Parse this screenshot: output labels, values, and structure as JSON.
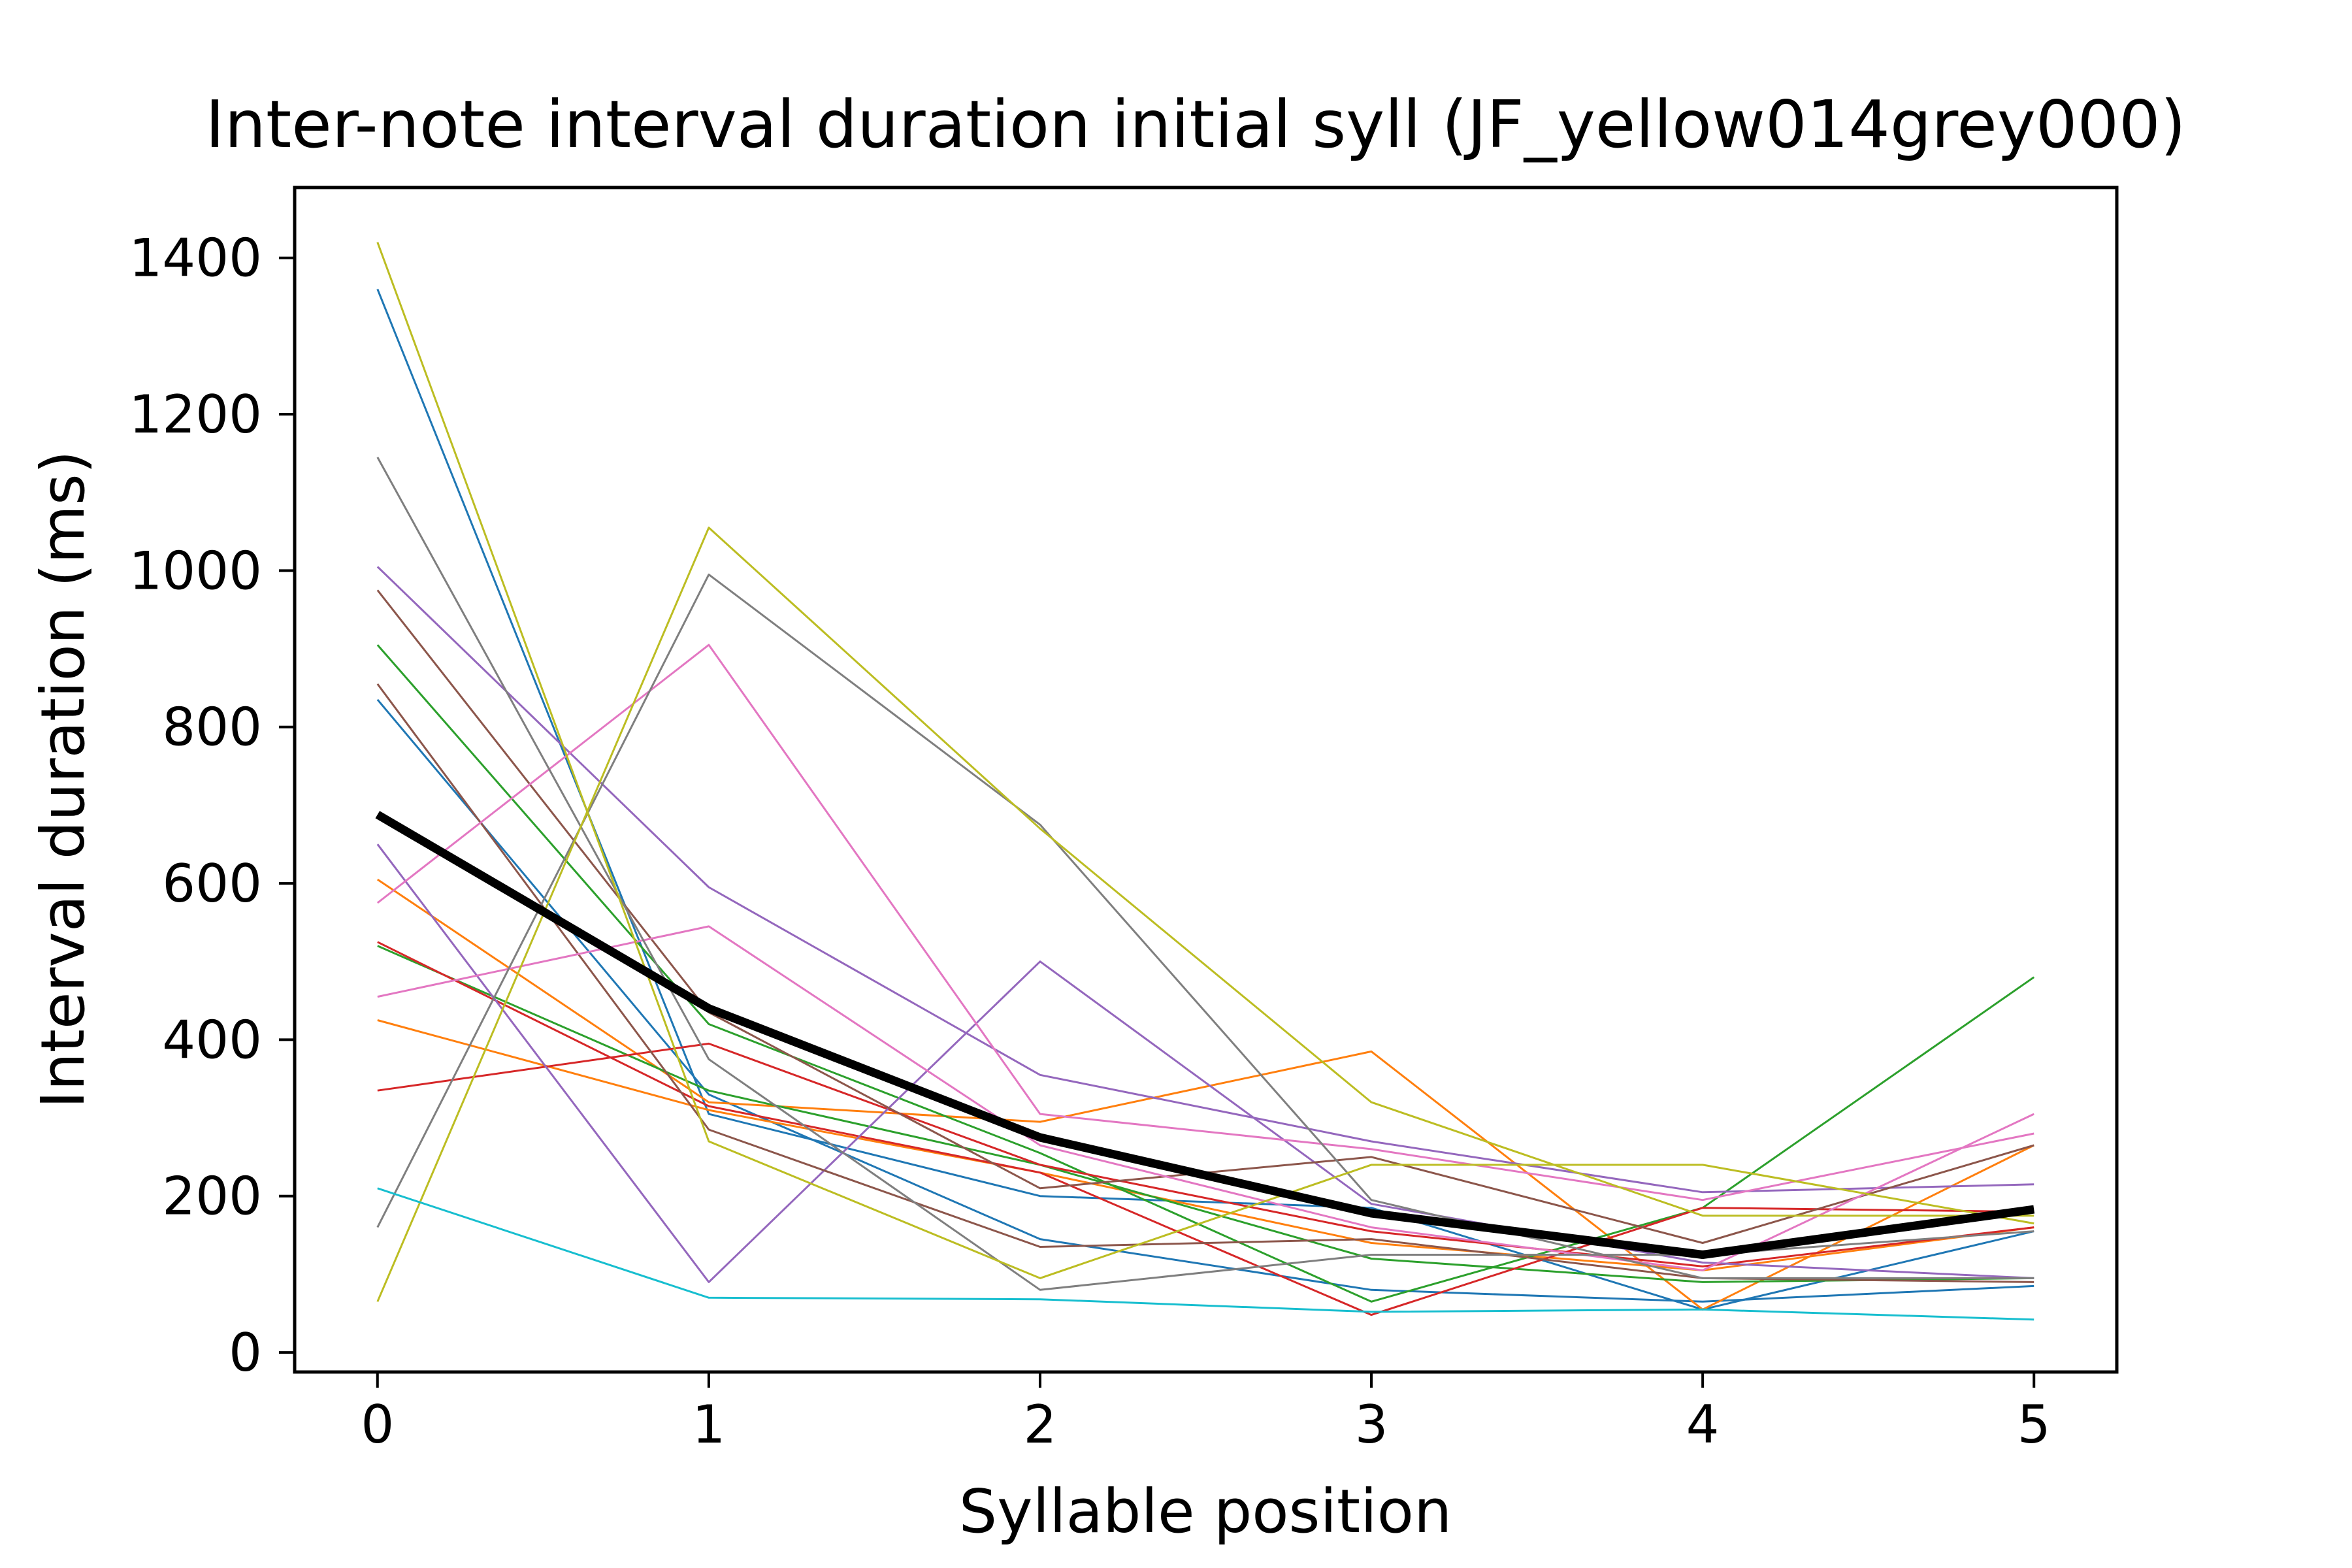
{
  "chart_data": {
    "type": "line",
    "title": "Inter-note interval duration initial syll (JF_yellow014grey000)",
    "xlabel": "Syllable position",
    "ylabel": "Interval duration (ms)",
    "x": [
      0,
      1,
      2,
      3,
      4,
      5
    ],
    "xlim": [
      -0.25,
      5.25
    ],
    "ylim": [
      -25,
      1490
    ],
    "xticks": [
      "0",
      "1",
      "2",
      "3",
      "4",
      "5"
    ],
    "yticks": [
      "0",
      "200",
      "400",
      "600",
      "800",
      "1000",
      "1200",
      "1400"
    ],
    "grid": false,
    "legend": "none",
    "series": [
      {
        "color": "#1f77b4",
        "values": [
          1360,
          305,
          200,
          185,
          55,
          155
        ]
      },
      {
        "color": "#1f77b4",
        "values": [
          835,
          330,
          145,
          80,
          65,
          85
        ]
      },
      {
        "color": "#ff7f0e",
        "values": [
          605,
          320,
          295,
          385,
          55,
          265
        ]
      },
      {
        "color": "#ff7f0e",
        "values": [
          425,
          310,
          230,
          140,
          105,
          160
        ]
      },
      {
        "color": "#2ca02c",
        "values": [
          905,
          420,
          255,
          65,
          185,
          480
        ]
      },
      {
        "color": "#2ca02c",
        "values": [
          520,
          335,
          240,
          120,
          90,
          95
        ]
      },
      {
        "color": "#d62728",
        "values": [
          525,
          315,
          230,
          48,
          185,
          180
        ]
      },
      {
        "color": "#d62728",
        "values": [
          335,
          395,
          240,
          155,
          110,
          160
        ]
      },
      {
        "color": "#9467bd",
        "values": [
          1005,
          595,
          355,
          270,
          205,
          215
        ]
      },
      {
        "color": "#9467bd",
        "values": [
          650,
          90,
          500,
          190,
          115,
          95
        ]
      },
      {
        "color": "#8c564b",
        "values": [
          975,
          435,
          210,
          250,
          140,
          265
        ]
      },
      {
        "color": "#8c564b",
        "values": [
          855,
          285,
          135,
          145,
          95,
          90
        ]
      },
      {
        "color": "#e377c2",
        "values": [
          575,
          905,
          305,
          260,
          195,
          280
        ]
      },
      {
        "color": "#e377c2",
        "values": [
          455,
          545,
          265,
          160,
          105,
          305
        ]
      },
      {
        "color": "#7f7f7f",
        "values": [
          1145,
          375,
          80,
          125,
          125,
          155
        ]
      },
      {
        "color": "#7f7f7f",
        "values": [
          160,
          995,
          675,
          195,
          95,
          95
        ]
      },
      {
        "color": "#bcbd22",
        "values": [
          1420,
          270,
          95,
          240,
          240,
          165
        ]
      },
      {
        "color": "#bcbd22",
        "values": [
          65,
          1055,
          670,
          320,
          175,
          175
        ]
      },
      {
        "color": "#17becf",
        "values": [
          210,
          70,
          68,
          52,
          55,
          42
        ]
      },
      {
        "color": "#000000",
        "values": [
          688,
          440,
          275,
          178,
          125,
          183
        ],
        "emphasis": true
      }
    ]
  }
}
